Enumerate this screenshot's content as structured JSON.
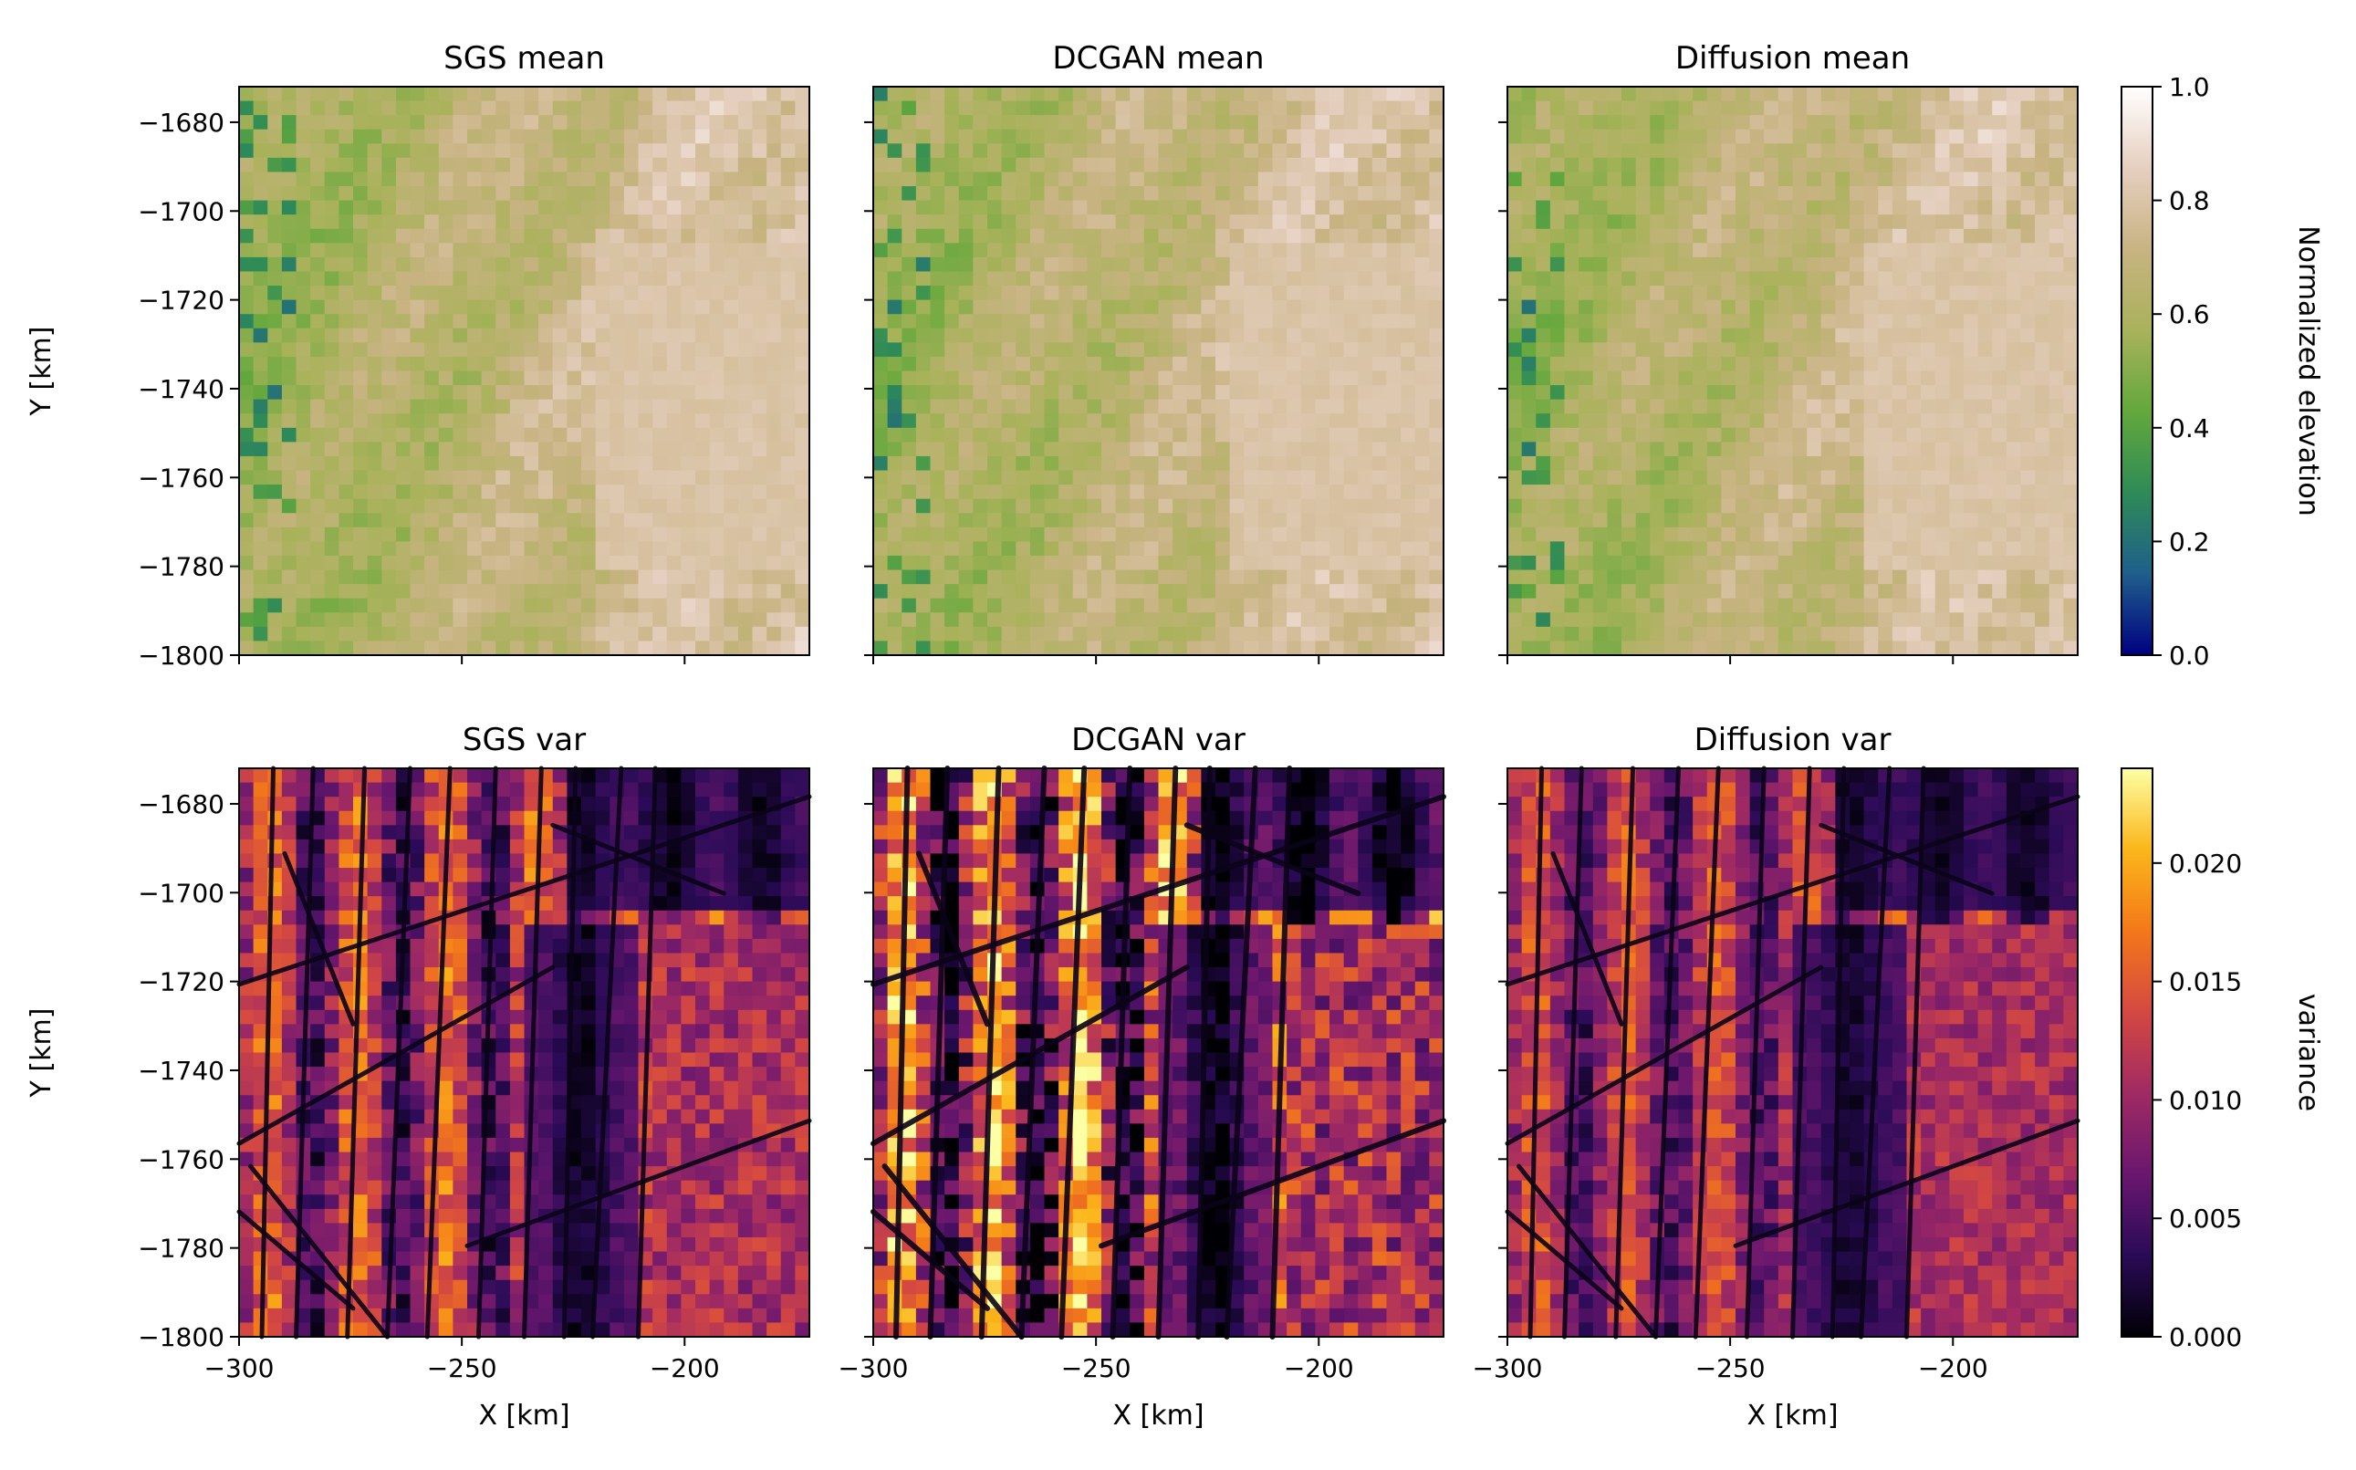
{
  "chart_data": [
    {
      "type": "heatmap",
      "title": "SGS mean",
      "ylabel": "Y [km]",
      "xlabel": "",
      "xlim": [
        -300,
        -172
      ],
      "ylim": [
        -1800,
        -1672
      ],
      "xticks": [
        -300,
        -250,
        -200
      ],
      "yticks": [
        -1680,
        -1700,
        -1720,
        -1740,
        -1760,
        -1780,
        -1800
      ],
      "show_x_ticklabels": false,
      "colormap": "gist_earth",
      "vlim": [
        0.0,
        1.0
      ]
    },
    {
      "type": "heatmap",
      "title": "DCGAN mean",
      "xlabel": "",
      "ylabel": "",
      "xlim": [
        -300,
        -172
      ],
      "ylim": [
        -1800,
        -1672
      ],
      "colormap": "gist_earth",
      "vlim": [
        0.0,
        1.0
      ]
    },
    {
      "type": "heatmap",
      "title": "Diffusion mean",
      "xlabel": "",
      "ylabel": "",
      "xlim": [
        -300,
        -172
      ],
      "ylim": [
        -1800,
        -1672
      ],
      "colormap": "gist_earth",
      "vlim": [
        0.0,
        1.0
      ]
    },
    {
      "type": "heatmap",
      "title": "SGS var",
      "xlabel": "X [km]",
      "ylabel": "Y [km]",
      "xlim": [
        -300,
        -172
      ],
      "ylim": [
        -1800,
        -1672
      ],
      "xticks": [
        -300,
        -250,
        -200
      ],
      "yticks": [
        -1680,
        -1700,
        -1720,
        -1740,
        -1760,
        -1780,
        -1800
      ],
      "colormap": "inferno",
      "vlim": [
        0.0,
        0.024
      ]
    },
    {
      "type": "heatmap",
      "title": "DCGAN var",
      "xlabel": "X [km]",
      "ylabel": "",
      "xlim": [
        -300,
        -172
      ],
      "ylim": [
        -1800,
        -1672
      ],
      "xticks": [
        -300,
        -250,
        -200
      ],
      "colormap": "inferno",
      "vlim": [
        0.0,
        0.024
      ]
    },
    {
      "type": "heatmap",
      "title": "Diffusion var",
      "xlabel": "X [km]",
      "ylabel": "",
      "xlim": [
        -300,
        -172
      ],
      "ylim": [
        -1800,
        -1672
      ],
      "xticks": [
        -300,
        -250,
        -200
      ],
      "colormap": "inferno",
      "vlim": [
        0.0,
        0.024
      ]
    }
  ],
  "colorbars": [
    {
      "label": "Normalized elevation",
      "ticks": [
        "0.0",
        "0.2",
        "0.4",
        "0.6",
        "0.8",
        "1.0"
      ],
      "tick_values": [
        0.0,
        0.2,
        0.4,
        0.6,
        0.8,
        1.0
      ],
      "range": [
        0.0,
        1.0
      ],
      "colors": [
        "#000080",
        "#1f5f8b",
        "#2e8b57",
        "#63a83c",
        "#a9b25a",
        "#c8b382",
        "#e6cfc0",
        "#ffffff"
      ]
    },
    {
      "label": "variance",
      "ticks": [
        "0.000",
        "0.005",
        "0.010",
        "0.015",
        "0.020"
      ],
      "tick_values": [
        0.0,
        0.005,
        0.01,
        0.015,
        0.02
      ],
      "range": [
        0.0,
        0.024
      ],
      "colors": [
        "#000004",
        "#2a0b57",
        "#6a176e",
        "#a02a63",
        "#d44842",
        "#f37819",
        "#fbb61a",
        "#fcffa4"
      ]
    }
  ]
}
